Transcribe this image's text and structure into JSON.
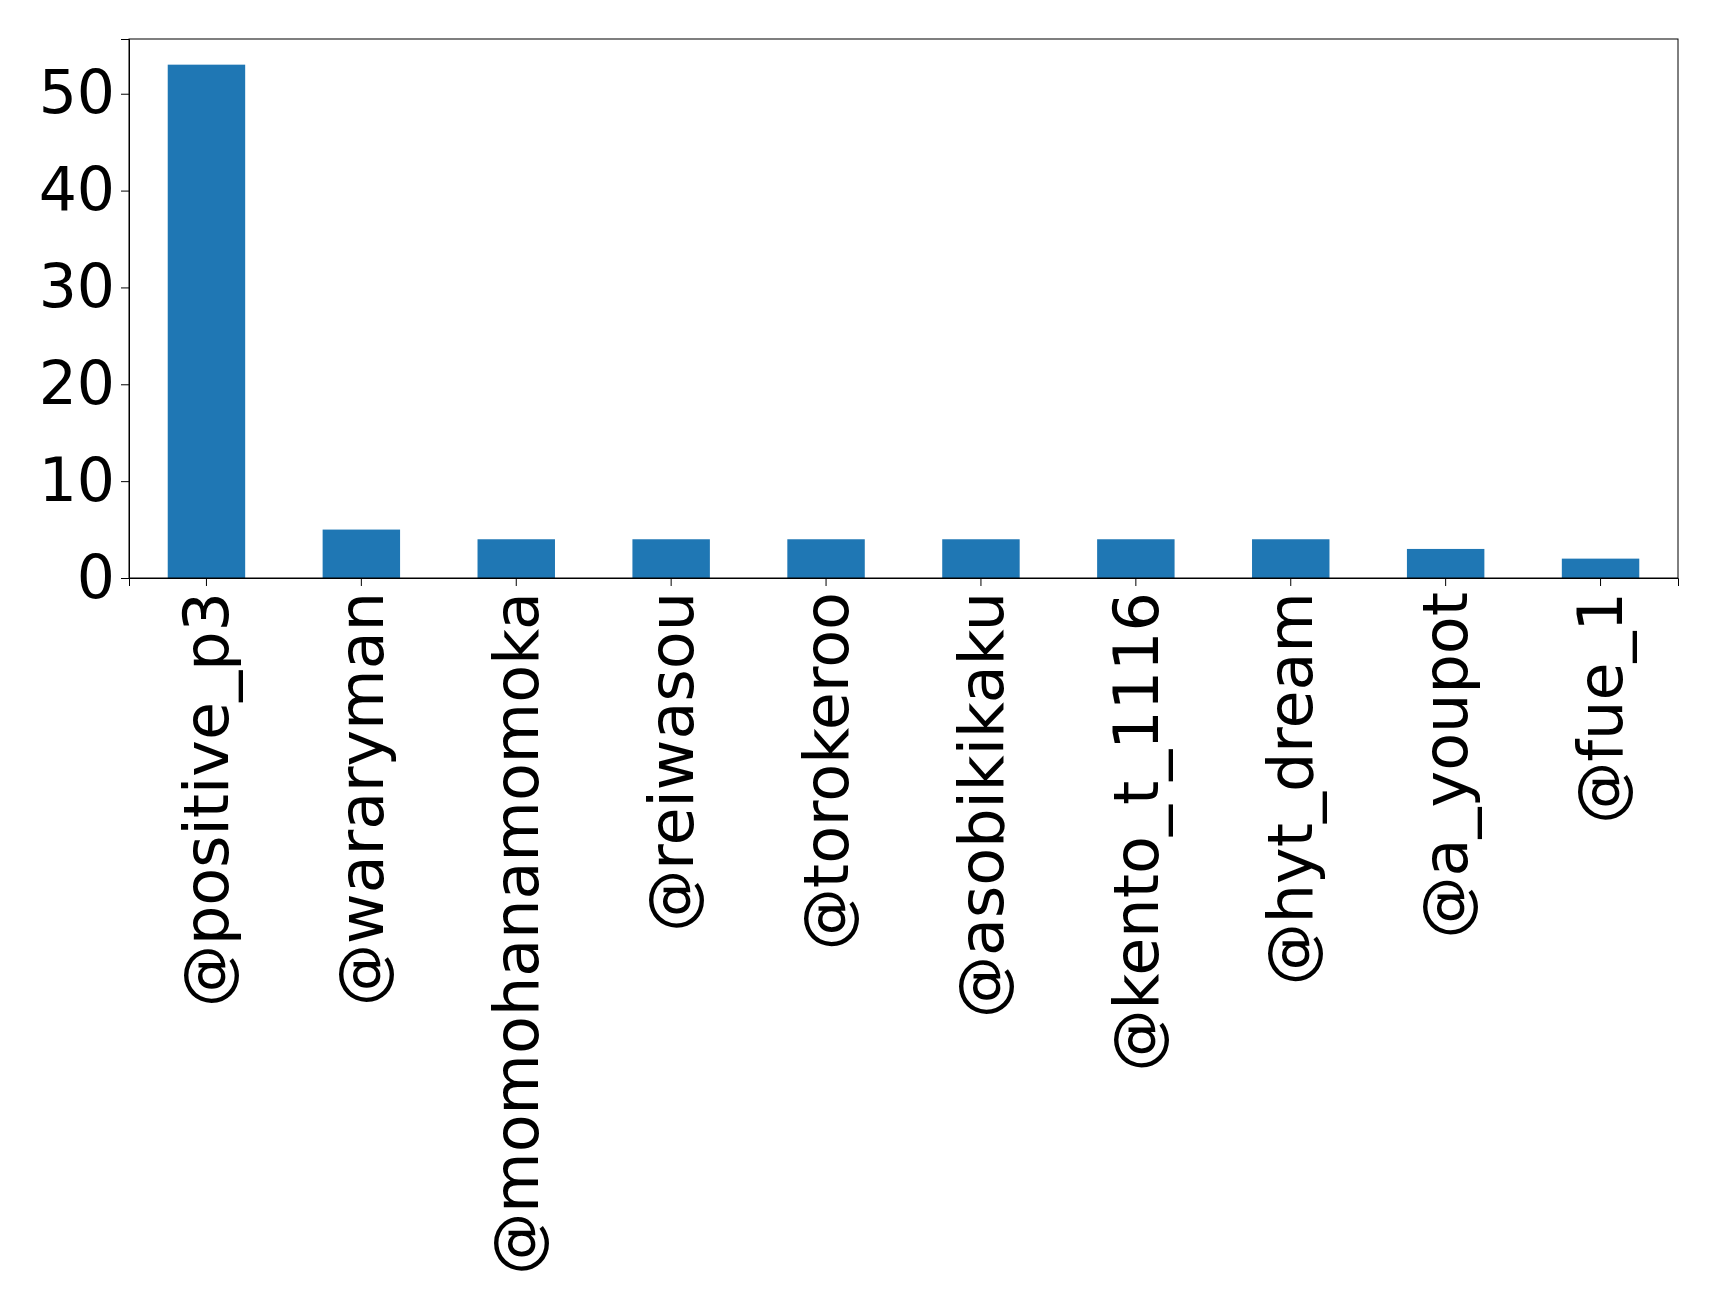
{
  "chart_data": {
    "type": "bar",
    "categories": [
      "@positive_p3",
      "@wararyman",
      "@momohanamomoka",
      "@reiwasou",
      "@torokeroo",
      "@asobikikaku",
      "@kento_t_1116",
      "@hyt_dream",
      "@a_youpot",
      "@fue_1"
    ],
    "values": [
      53,
      5,
      4,
      4,
      4,
      4,
      4,
      4,
      3,
      2
    ],
    "color": "#1f77b4",
    "ylim": [
      0,
      55.65
    ],
    "yticks": [
      0,
      10,
      20,
      30,
      40,
      50
    ],
    "grid": false
  }
}
